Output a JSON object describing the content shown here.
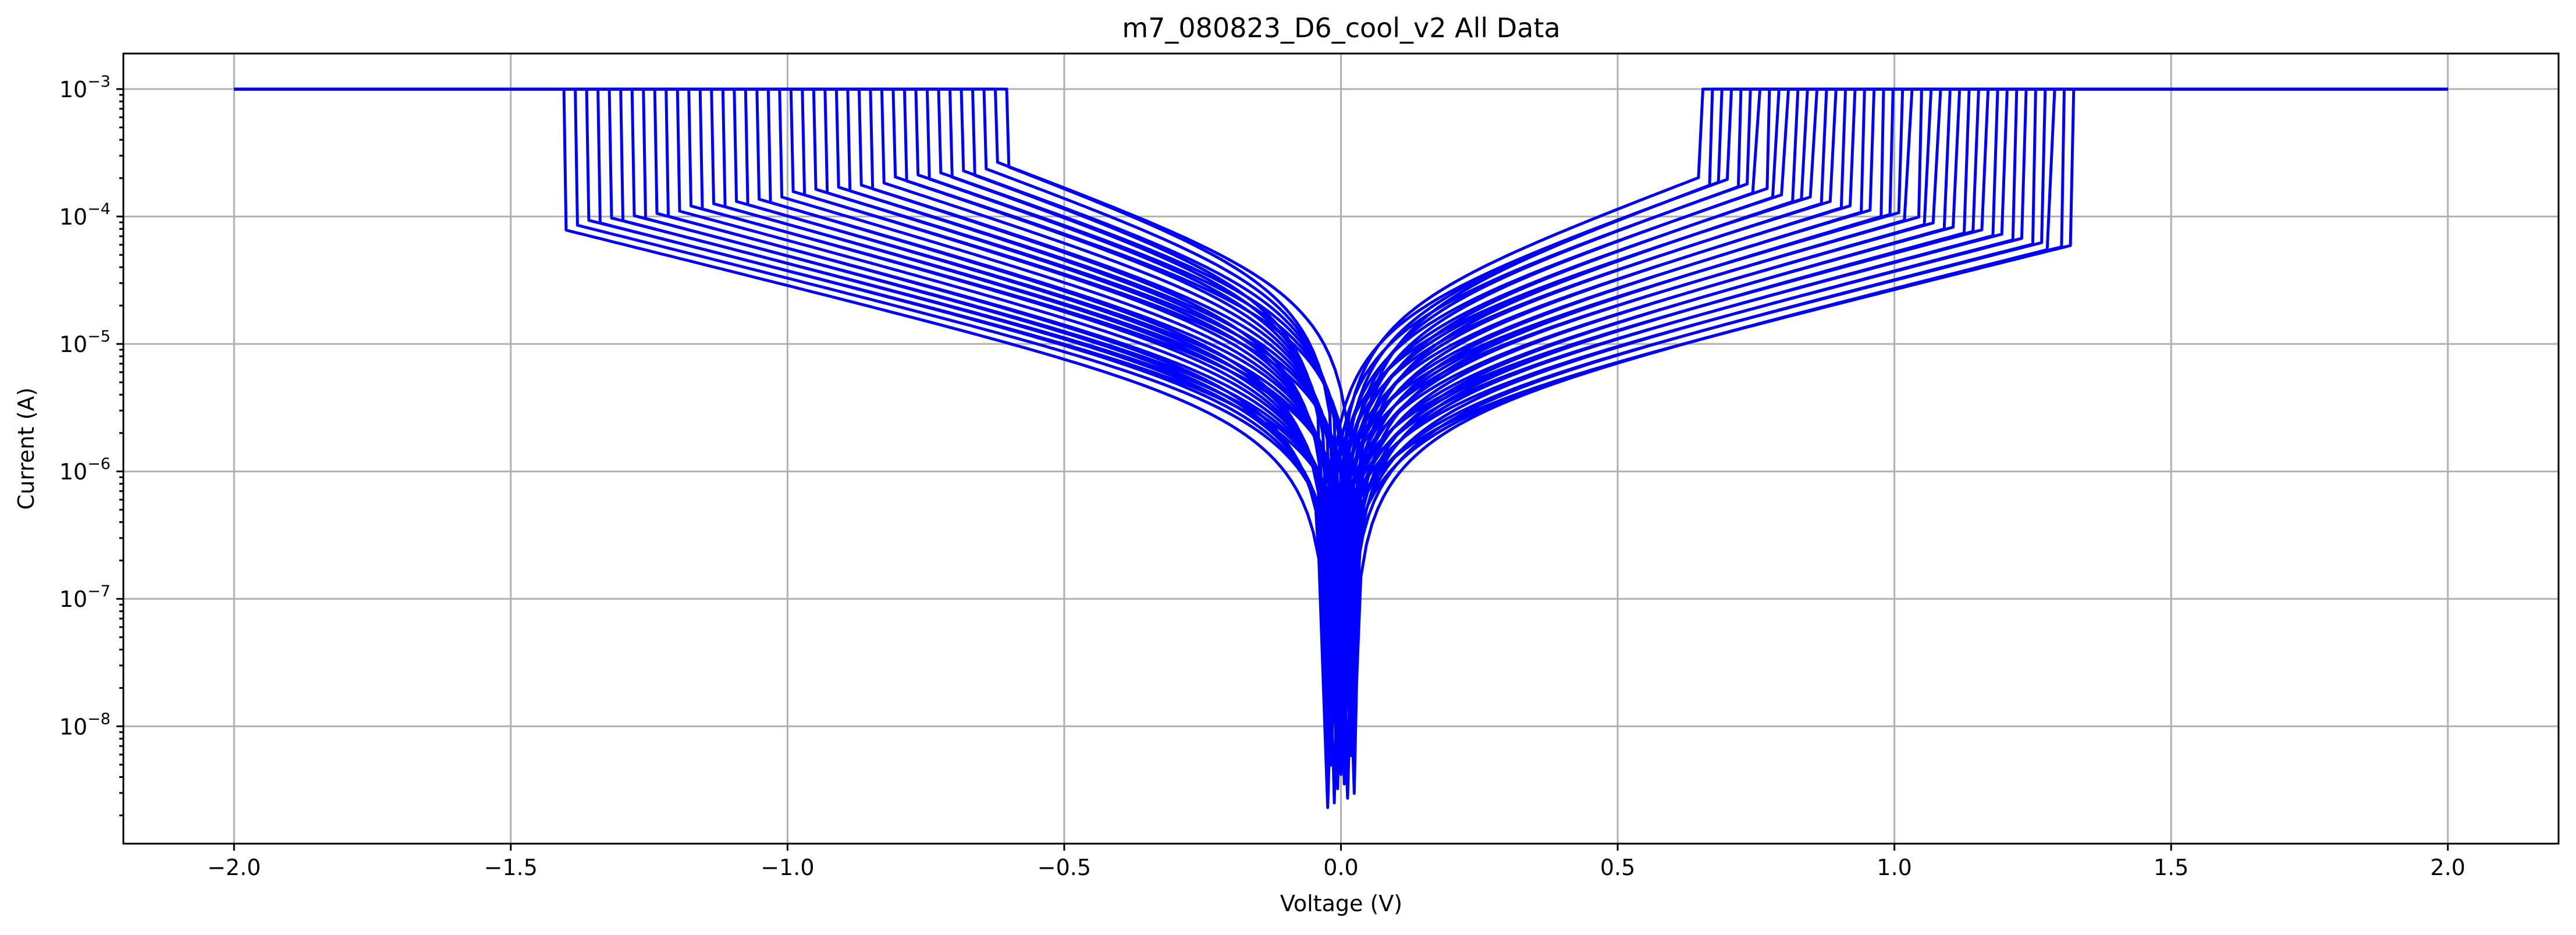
{
  "chart_data": {
    "type": "line",
    "title": "m7_080823_D6_cool_v2 All Data",
    "xlabel": "Voltage (V)",
    "ylabel": "Current (A)",
    "xlim": [
      -2.2,
      2.2
    ],
    "ylim": [
      1.2e-09,
      0.0019
    ],
    "yscale": "log",
    "grid": true,
    "line_color": "#0000ff",
    "x_ticks": [
      {
        "value": -2.0,
        "label": "−2.0"
      },
      {
        "value": -1.5,
        "label": "−1.5"
      },
      {
        "value": -1.0,
        "label": "−1.0"
      },
      {
        "value": -0.5,
        "label": "−0.5"
      },
      {
        "value": 0.0,
        "label": "0.0"
      },
      {
        "value": 0.5,
        "label": "0.5"
      },
      {
        "value": 1.0,
        "label": "1.0"
      },
      {
        "value": 1.5,
        "label": "1.5"
      },
      {
        "value": 2.0,
        "label": "2.0"
      }
    ],
    "y_ticks": [
      {
        "value": 1e-08,
        "base": "10",
        "exp": "−8"
      },
      {
        "value": 1e-07,
        "base": "10",
        "exp": "−7"
      },
      {
        "value": 1e-06,
        "base": "10",
        "exp": "−6"
      },
      {
        "value": 1e-05,
        "base": "10",
        "exp": "−5"
      },
      {
        "value": 0.0001,
        "base": "10",
        "exp": "−4"
      },
      {
        "value": 0.001,
        "base": "10",
        "exp": "−3"
      }
    ],
    "sweep": {
      "compliance": 0.001,
      "v_range": [
        -2.0,
        2.0
      ],
      "curve_count": 40,
      "neg_switch_v": [
        -1.4,
        -0.6
      ],
      "pos_switch_v": [
        1.32,
        0.65
      ],
      "neg_switch_i": [
        8.3e-05,
        0.00025
      ],
      "pos_switch_i": [
        5.6e-05,
        0.0002
      ],
      "min_i_range": [
        2.3e-09,
        7e-08
      ]
    }
  }
}
